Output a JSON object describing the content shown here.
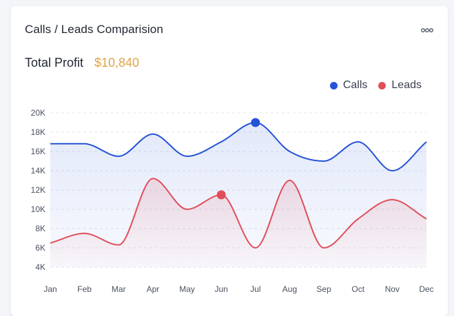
{
  "card": {
    "title": "Calls / Leads Comparision",
    "profit_label": "Total Profit",
    "profit_value": "$10,840",
    "more_icon": "more-horizontal-icon"
  },
  "colors": {
    "calls": "#2453d6",
    "leads": "#e04e5a",
    "profit": "#e0a54a",
    "grid": "#e3e6ee",
    "tick": "#4a5160"
  },
  "chart_data": {
    "type": "line",
    "categories": [
      "Jan",
      "Feb",
      "Mar",
      "Apr",
      "May",
      "Jun",
      "Jul",
      "Aug",
      "Sep",
      "Oct",
      "Nov",
      "Dec"
    ],
    "y_ticks": [
      "20K",
      "18K",
      "16K",
      "14K",
      "12K",
      "10K",
      "8K",
      "6K",
      "4K"
    ],
    "ylim": [
      4000,
      20000
    ],
    "series": [
      {
        "name": "Calls",
        "values": [
          16800,
          16800,
          15500,
          17800,
          15500,
          17000,
          19000,
          16000,
          15000,
          17000,
          14000,
          17000
        ],
        "highlight_index": 6
      },
      {
        "name": "Leads",
        "values": [
          6500,
          7500,
          6300,
          13200,
          10000,
          11500,
          6000,
          13000,
          6000,
          9000,
          11000,
          9000
        ],
        "highlight_index": 5
      }
    ],
    "grid": true,
    "legend_position": "top-right"
  }
}
